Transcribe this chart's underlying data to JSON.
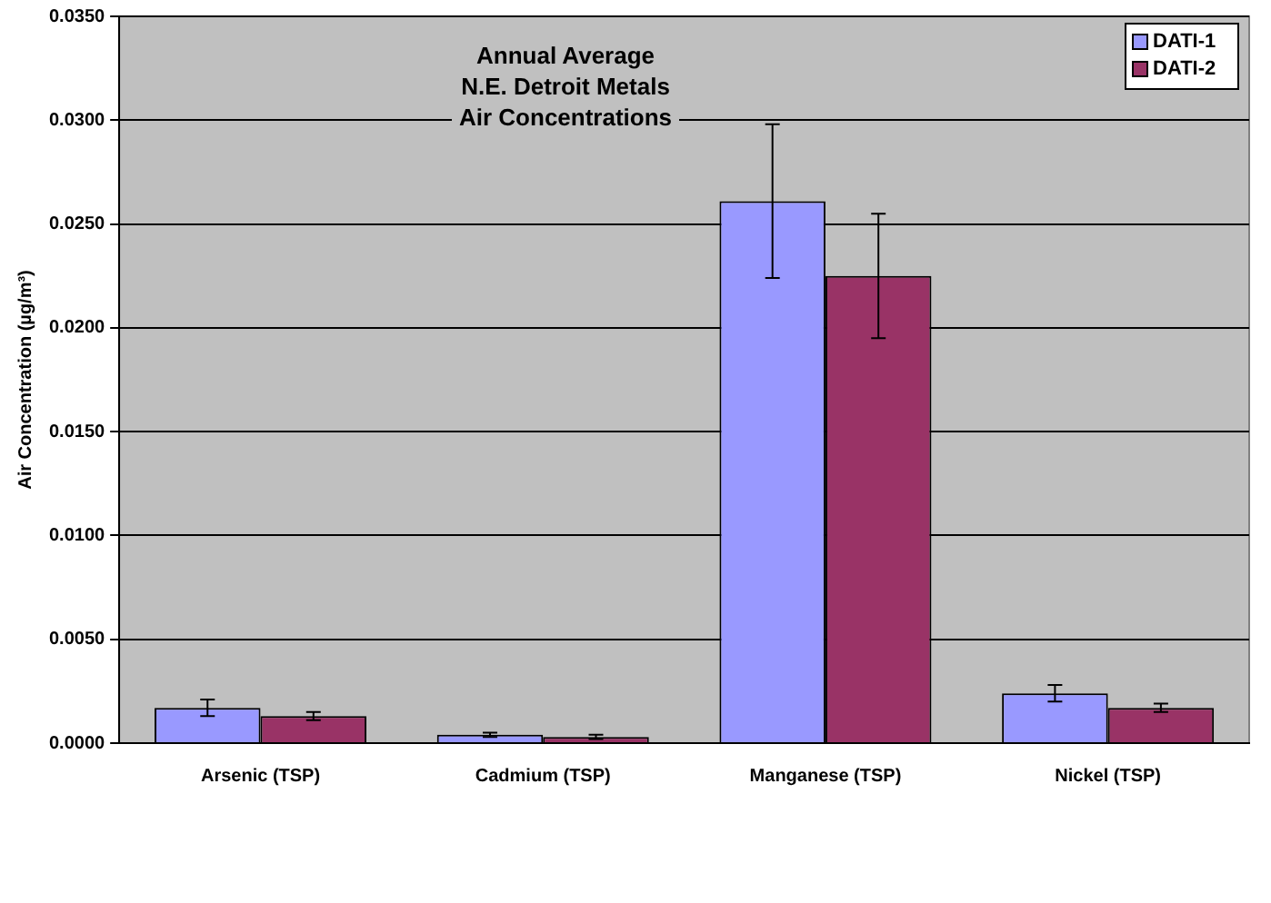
{
  "chart_data": {
    "type": "bar",
    "title": "Annual Average\nN.E. Detroit Metals\nAir Concentrations",
    "ylabel": "Air Concentration (µg/m³)",
    "categories": [
      "Arsenic (TSP)",
      "Cadmium (TSP)",
      "Manganese (TSP)",
      "Nickel (TSP)"
    ],
    "series": [
      {
        "name": "DATI-1",
        "color": "#9999ff",
        "values": [
          0.0017,
          0.0004,
          0.0261,
          0.0024
        ],
        "errors": [
          0.0004,
          0.0001,
          0.0037,
          0.0004
        ]
      },
      {
        "name": "DATI-2",
        "color": "#993366",
        "values": [
          0.0013,
          0.0003,
          0.0225,
          0.0017
        ],
        "errors": [
          0.0002,
          0.0001,
          0.003,
          0.0002
        ]
      }
    ],
    "ylim": [
      0,
      0.035
    ],
    "yticks": [
      {
        "value": 0,
        "label": "0.0000"
      },
      {
        "value": 0.005,
        "label": "0.0050"
      },
      {
        "value": 0.01,
        "label": "0.0100"
      },
      {
        "value": 0.015,
        "label": "0.0150"
      },
      {
        "value": 0.02,
        "label": "0.0200"
      },
      {
        "value": 0.025,
        "label": "0.0250"
      },
      {
        "value": 0.03,
        "label": "0.0300"
      },
      {
        "value": 0.035,
        "label": "0.0350"
      }
    ],
    "grid": "y",
    "legend": "top right"
  }
}
